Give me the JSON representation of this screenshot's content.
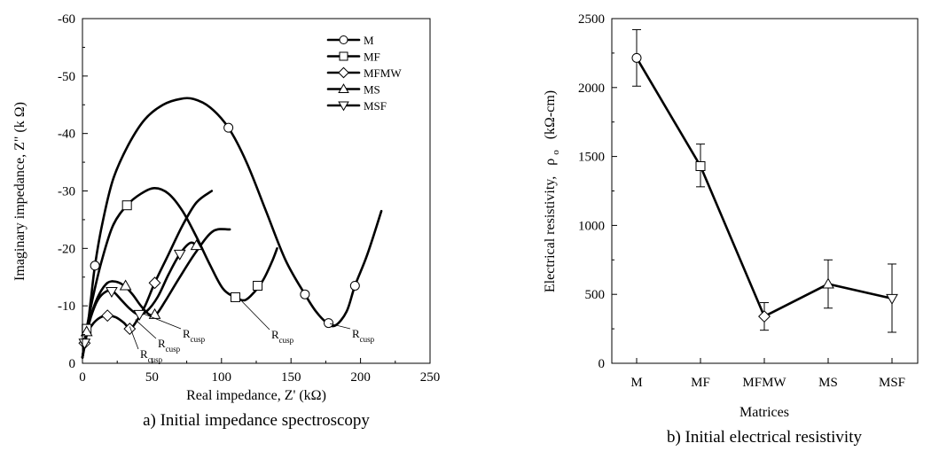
{
  "chart_data": [
    {
      "type": "line",
      "caption": "a) Initial impedance spectroscopy",
      "xlabel": "Real impedance, Z' (kΩ)",
      "ylabel": "Imaginary impedance, Z\" (k Ω)",
      "xlim": [
        0,
        250
      ],
      "ylim": [
        0,
        -60
      ],
      "xticks": [
        0,
        50,
        100,
        150,
        200,
        250
      ],
      "yticks": [
        0,
        -10,
        -20,
        -30,
        -40,
        -50,
        -60
      ],
      "grid": false,
      "legend_position": "top-right",
      "series": [
        {
          "name": "M",
          "marker": "circle",
          "points": [
            [
              0,
              -1
            ],
            [
              3,
              -5
            ],
            [
              6,
              -11
            ],
            [
              9,
              -17
            ],
            [
              14,
              -24
            ],
            [
              22,
              -32
            ],
            [
              33,
              -38
            ],
            [
              45,
              -42.5
            ],
            [
              58,
              -45
            ],
            [
              70,
              -46
            ],
            [
              80,
              -46
            ],
            [
              92,
              -44.5
            ],
            [
              105,
              -41
            ],
            [
              118,
              -35
            ],
            [
              132,
              -26.5
            ],
            [
              146,
              -18
            ],
            [
              160,
              -12
            ],
            [
              168,
              -9
            ],
            [
              176,
              -7
            ],
            [
              182,
              -6.6
            ],
            [
              190,
              -9
            ],
            [
              196,
              -13.5
            ],
            [
              205,
              -19
            ],
            [
              215,
              -26.5
            ]
          ],
          "markers_at": [
            [
              9,
              -17
            ],
            [
              105,
              -41
            ],
            [
              160,
              -12
            ],
            [
              177,
              -7
            ],
            [
              196,
              -13.5
            ]
          ]
        },
        {
          "name": "MF",
          "marker": "square",
          "points": [
            [
              0,
              -1
            ],
            [
              3,
              -6
            ],
            [
              8,
              -12
            ],
            [
              14,
              -18
            ],
            [
              22,
              -24
            ],
            [
              32,
              -27.5
            ],
            [
              42,
              -29.5
            ],
            [
              52,
              -30.5
            ],
            [
              62,
              -29.5
            ],
            [
              72,
              -26.5
            ],
            [
              82,
              -22
            ],
            [
              92,
              -17
            ],
            [
              101,
              -13
            ],
            [
              110,
              -11.5
            ],
            [
              117,
              -11
            ],
            [
              124,
              -12.5
            ],
            [
              130,
              -14.5
            ],
            [
              136,
              -17.5
            ],
            [
              140,
              -20
            ]
          ],
          "markers_at": [
            [
              3,
              -6
            ],
            [
              32,
              -27.5
            ],
            [
              110,
              -11.5
            ],
            [
              126,
              -13.5
            ]
          ]
        },
        {
          "name": "MFMW",
          "marker": "diamond",
          "points": [
            [
              0,
              -1
            ],
            [
              1.5,
              -3.5
            ],
            [
              4,
              -5.5
            ],
            [
              8,
              -7
            ],
            [
              13,
              -8
            ],
            [
              18,
              -8.3
            ],
            [
              24,
              -8
            ],
            [
              30,
              -7
            ],
            [
              34,
              -6
            ],
            [
              38,
              -7
            ],
            [
              45,
              -10
            ],
            [
              52,
              -14
            ],
            [
              62,
              -19
            ],
            [
              72,
              -24
            ],
            [
              82,
              -28
            ],
            [
              93,
              -30
            ]
          ],
          "markers_at": [
            [
              1.5,
              -3.5
            ],
            [
              18,
              -8.3
            ],
            [
              34,
              -6
            ],
            [
              52,
              -14
            ]
          ]
        },
        {
          "name": "MS",
          "marker": "triangle-up",
          "points": [
            [
              0,
              -1
            ],
            [
              3,
              -5.5
            ],
            [
              7,
              -9
            ],
            [
              12,
              -12
            ],
            [
              18,
              -14
            ],
            [
              24,
              -14.2
            ],
            [
              30,
              -13.5
            ],
            [
              36,
              -12
            ],
            [
              42,
              -10
            ],
            [
              48,
              -8.5
            ],
            [
              53,
              -8.5
            ],
            [
              60,
              -11
            ],
            [
              70,
              -15
            ],
            [
              82,
              -19.5
            ],
            [
              94,
              -23
            ],
            [
              106,
              -23.3
            ]
          ],
          "markers_at": [
            [
              3,
              -5.5
            ],
            [
              31,
              -13.5
            ],
            [
              52,
              -8.5
            ],
            [
              82,
              -20.5
            ]
          ]
        },
        {
          "name": "MSF",
          "marker": "triangle-down",
          "points": [
            [
              0,
              -1
            ],
            [
              2,
              -4
            ],
            [
              6,
              -8
            ],
            [
              11,
              -11
            ],
            [
              17,
              -12.5
            ],
            [
              22,
              -12.5
            ],
            [
              28,
              -11
            ],
            [
              34,
              -9.5
            ],
            [
              40,
              -8.5
            ],
            [
              46,
              -9
            ],
            [
              54,
              -11.5
            ],
            [
              62,
              -15.5
            ],
            [
              70,
              -19
            ],
            [
              78,
              -21
            ],
            [
              84,
              -20
            ]
          ],
          "markers_at": [
            [
              1.5,
              -3.5
            ],
            [
              21,
              -12.5
            ],
            [
              41,
              -8.5
            ],
            [
              70,
              -19
            ]
          ]
        }
      ],
      "annotations": [
        {
          "text": "R",
          "sub": "cusp",
          "target": [
            44,
            -8.6
          ]
        },
        {
          "text": "R",
          "sub": "cusp",
          "target": [
            38,
            -7.6
          ]
        },
        {
          "text": "R",
          "sub": "cusp",
          "target": [
            34,
            -6.4
          ]
        },
        {
          "text": "R",
          "sub": "cusp",
          "target": [
            113,
            -11.2
          ]
        },
        {
          "text": "R",
          "sub": "cusp",
          "target": [
            178,
            -6.9
          ]
        }
      ]
    },
    {
      "type": "line",
      "caption": "b) Initial electrical resistivity",
      "xlabel": "Matrices",
      "ylabel": "Electrical resistivity,",
      "ylabel_symbol": "ρ",
      "ylabel_sub": "o",
      "ylabel_unit": "(kΩ-cm)",
      "categories": [
        "M",
        "MF",
        "MFMW",
        "MS",
        "MSF"
      ],
      "markers": [
        "circle",
        "square",
        "diamond",
        "triangle-up",
        "triangle-down"
      ],
      "values": [
        2215,
        1430,
        340,
        575,
        470
      ],
      "error_low": [
        2010,
        1280,
        240,
        400,
        225
      ],
      "error_high": [
        2420,
        1590,
        440,
        750,
        720
      ],
      "ylim": [
        0,
        2500
      ],
      "yticks": [
        0,
        500,
        1000,
        1500,
        2000,
        2500
      ],
      "grid": false
    }
  ]
}
